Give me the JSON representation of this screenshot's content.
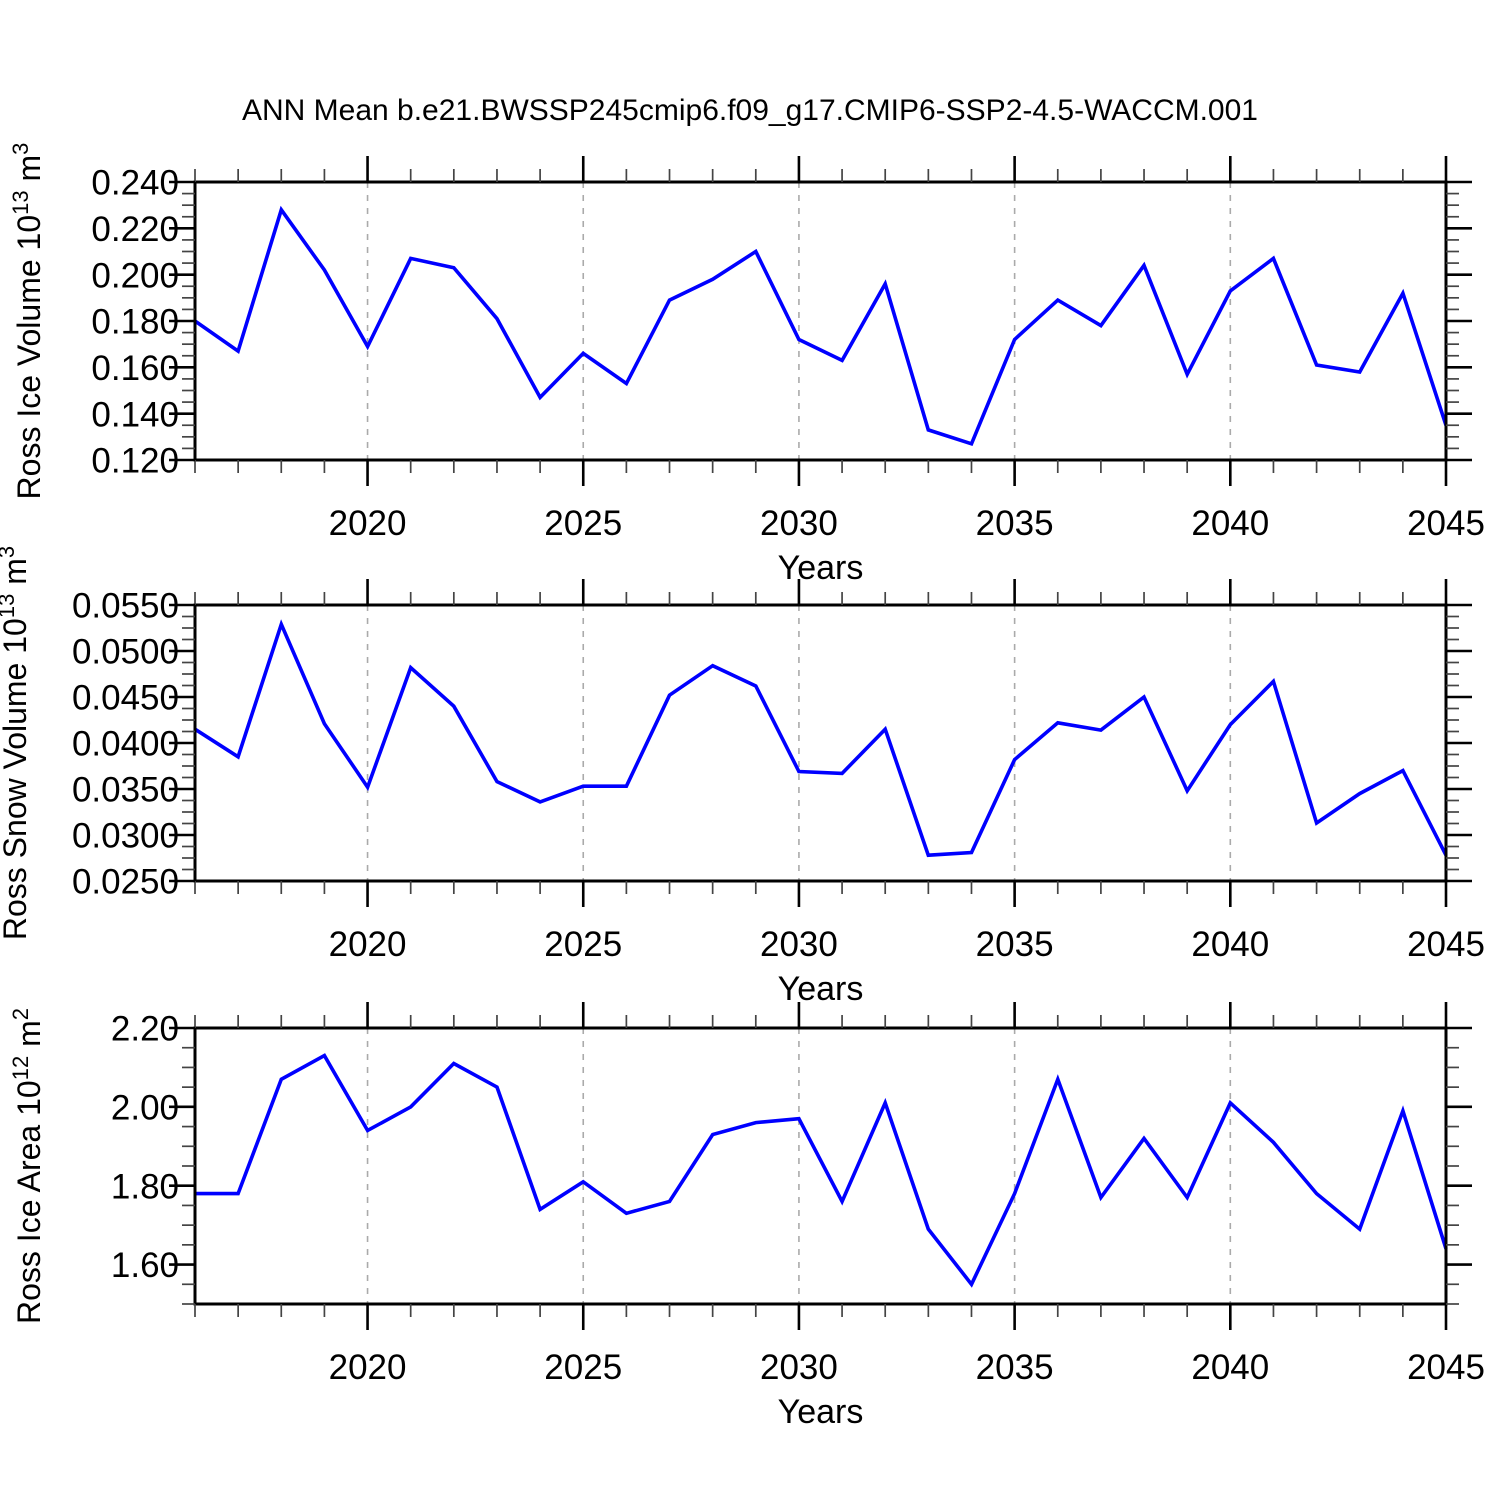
{
  "title": "ANN Mean b.e21.BWSSP245cmip6.f09_g17.CMIP6-SSP2-4.5-WACCM.001",
  "colors": {
    "series_line": "#0000ff",
    "axis": "#000000",
    "minor_tick": "#444444",
    "gridline": "#aaaaaa",
    "background": "#ffffff"
  },
  "chart_data": [
    {
      "type": "line",
      "name": "ross-ice-volume",
      "ylabel": {
        "text": "Ross Ice Volume ",
        "scale_base": "10",
        "scale_exp": "13",
        "unit": " m",
        "unit_exp": "3"
      },
      "xlabel": "Years",
      "ylim": [
        0.12,
        0.24
      ],
      "xlim": [
        2016,
        2045
      ],
      "ytick_values": [
        0.12,
        0.14,
        0.16,
        0.18,
        0.2,
        0.22,
        0.24
      ],
      "ytick_labels": [
        "0.120",
        "0.140",
        "0.160",
        "0.180",
        "0.200",
        "0.220",
        "0.240"
      ],
      "y_minor_step": 0.005,
      "xtick_values": [
        2020,
        2025,
        2030,
        2035,
        2040,
        2045
      ],
      "xtick_labels": [
        "2020",
        "2025",
        "2030",
        "2035",
        "2040",
        "2045"
      ],
      "x_minor_step": 1,
      "grid_x_values": [
        2020,
        2025,
        2030,
        2035,
        2040
      ],
      "x": [
        2016,
        2017,
        2018,
        2019,
        2020,
        2021,
        2022,
        2023,
        2024,
        2025,
        2026,
        2027,
        2028,
        2029,
        2030,
        2031,
        2032,
        2033,
        2034,
        2035,
        2036,
        2037,
        2038,
        2039,
        2040,
        2041,
        2042,
        2043,
        2044,
        2045
      ],
      "values": [
        0.18,
        0.167,
        0.228,
        0.202,
        0.169,
        0.207,
        0.203,
        0.181,
        0.147,
        0.166,
        0.153,
        0.189,
        0.198,
        0.21,
        0.172,
        0.163,
        0.196,
        0.133,
        0.127,
        0.172,
        0.189,
        0.178,
        0.204,
        0.157,
        0.193,
        0.207,
        0.161,
        0.158,
        0.192,
        0.135
      ]
    },
    {
      "type": "line",
      "name": "ross-snow-volume",
      "ylabel": {
        "text": "Ross Snow Volume ",
        "scale_base": "10",
        "scale_exp": "13",
        "unit": " m",
        "unit_exp": "3"
      },
      "xlabel": "Years",
      "ylim": [
        0.025,
        0.055
      ],
      "xlim": [
        2016,
        2045
      ],
      "ytick_values": [
        0.025,
        0.03,
        0.035,
        0.04,
        0.045,
        0.05,
        0.055
      ],
      "ytick_labels": [
        "0.0250",
        "0.0300",
        "0.0350",
        "0.0400",
        "0.0450",
        "0.0500",
        "0.0550"
      ],
      "y_minor_step": 0.00125,
      "xtick_values": [
        2020,
        2025,
        2030,
        2035,
        2040,
        2045
      ],
      "xtick_labels": [
        "2020",
        "2025",
        "2030",
        "2035",
        "2040",
        "2045"
      ],
      "x_minor_step": 1,
      "grid_x_values": [
        2020,
        2025,
        2030,
        2035,
        2040
      ],
      "x": [
        2016,
        2017,
        2018,
        2019,
        2020,
        2021,
        2022,
        2023,
        2024,
        2025,
        2026,
        2027,
        2028,
        2029,
        2030,
        2031,
        2032,
        2033,
        2034,
        2035,
        2036,
        2037,
        2038,
        2039,
        2040,
        2041,
        2042,
        2043,
        2044,
        2045
      ],
      "values": [
        0.0415,
        0.0385,
        0.0529,
        0.0421,
        0.0352,
        0.0482,
        0.044,
        0.0358,
        0.0336,
        0.0353,
        0.0353,
        0.0452,
        0.0484,
        0.0462,
        0.0369,
        0.0367,
        0.0415,
        0.0278,
        0.0281,
        0.0382,
        0.0422,
        0.0414,
        0.045,
        0.0348,
        0.042,
        0.0467,
        0.0313,
        0.0345,
        0.037,
        0.0278
      ]
    },
    {
      "type": "line",
      "name": "ross-ice-area",
      "ylabel": {
        "text": "Ross Ice Area ",
        "scale_base": "10",
        "scale_exp": "12",
        "unit": " m",
        "unit_exp": "2"
      },
      "xlabel": "Years",
      "ylim": [
        1.5,
        2.2
      ],
      "xlim": [
        2016,
        2045
      ],
      "ytick_values": [
        1.6,
        1.8,
        2.0,
        2.2
      ],
      "ytick_labels": [
        "1.60",
        "1.80",
        "2.00",
        "2.20"
      ],
      "y_minor_step": 0.05,
      "xtick_values": [
        2020,
        2025,
        2030,
        2035,
        2040,
        2045
      ],
      "xtick_labels": [
        "2020",
        "2025",
        "2030",
        "2035",
        "2040",
        "2045"
      ],
      "x_minor_step": 1,
      "grid_x_values": [
        2020,
        2025,
        2030,
        2035,
        2040
      ],
      "x": [
        2016,
        2017,
        2018,
        2019,
        2020,
        2021,
        2022,
        2023,
        2024,
        2025,
        2026,
        2027,
        2028,
        2029,
        2030,
        2031,
        2032,
        2033,
        2034,
        2035,
        2036,
        2037,
        2038,
        2039,
        2040,
        2041,
        2042,
        2043,
        2044,
        2045
      ],
      "values": [
        1.78,
        1.78,
        2.07,
        2.13,
        1.94,
        2.0,
        2.11,
        2.05,
        1.74,
        1.81,
        1.73,
        1.76,
        1.93,
        1.96,
        1.97,
        1.76,
        2.01,
        1.69,
        1.55,
        1.78,
        2.07,
        1.77,
        1.92,
        1.77,
        2.01,
        1.91,
        1.78,
        1.69,
        1.99,
        1.64
      ]
    }
  ]
}
